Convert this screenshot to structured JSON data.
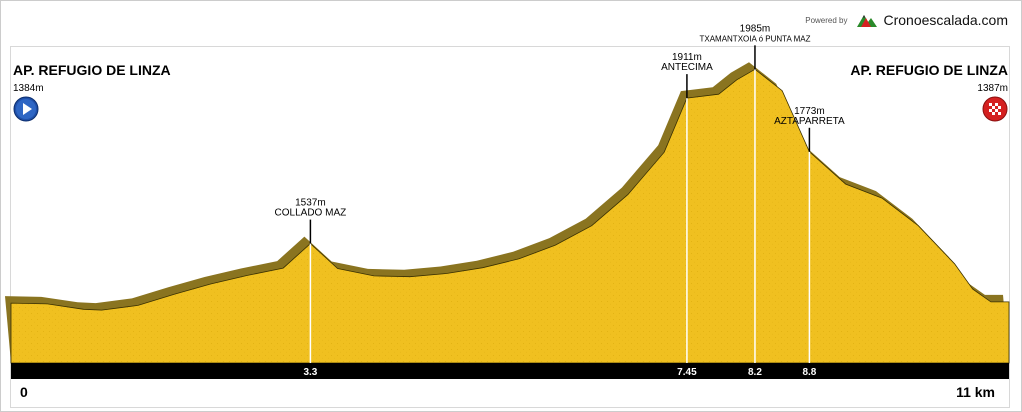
{
  "branding": {
    "powered_by": "Powered by",
    "name": "Cronoescalada.com",
    "logo_icon": "mountain-logo-icon",
    "logo_colors": [
      "#d62020",
      "#2a8a2a",
      "#333333"
    ]
  },
  "start": {
    "name": "AP. REFUGIO DE LINZA",
    "elevation": "1384m",
    "icon": "play-start-icon",
    "color": "#1f4fa8"
  },
  "finish": {
    "name": "AP. REFUGIO DE LINZA",
    "elevation": "1387m",
    "icon": "checkered-flag-icon",
    "color": "#d42020"
  },
  "axis": {
    "start_label": "0",
    "end_label": "11 km"
  },
  "colors": {
    "fill": "#f0c020",
    "shadow": "#8a7420",
    "axis_bar": "#000000",
    "frame": "#cccccc"
  },
  "chart_data": {
    "type": "area",
    "title": "",
    "xlabel": "",
    "ylabel": "",
    "xlim": [
      0,
      11
    ],
    "ylim": [
      1230,
      2045
    ],
    "grid": false,
    "legend": false,
    "x": [
      0,
      0.4,
      0.8,
      1.0,
      1.4,
      1.8,
      2.2,
      2.6,
      3.0,
      3.3,
      3.6,
      4.0,
      4.4,
      4.8,
      5.2,
      5.6,
      6.0,
      6.4,
      6.8,
      7.2,
      7.45,
      7.8,
      8.0,
      8.2,
      8.5,
      8.8,
      9.2,
      9.6,
      10.0,
      10.4,
      10.6,
      10.8,
      11.0
    ],
    "elevation_m": [
      1384,
      1382,
      1368,
      1366,
      1378,
      1407,
      1433,
      1455,
      1474,
      1537,
      1473,
      1454,
      1452,
      1460,
      1475,
      1498,
      1533,
      1583,
      1663,
      1772,
      1911,
      1921,
      1958,
      1985,
      1930,
      1773,
      1690,
      1654,
      1583,
      1485,
      1420,
      1387,
      1387
    ],
    "annotations": [
      {
        "km": 3.3,
        "km_label": "3.3",
        "elevation": "1537m",
        "name": "COLLADO MAZ",
        "elev_value": 1537
      },
      {
        "km": 7.45,
        "km_label": "7.45",
        "elevation": "1911m",
        "name": "ANTECIMA",
        "elev_value": 1911
      },
      {
        "km": 8.2,
        "km_label": "8.2",
        "elevation": "1985m",
        "name": "TXAMANTXOIA ó PUNTA MAZ",
        "elev_value": 1985
      },
      {
        "km": 8.8,
        "km_label": "8.8",
        "elevation": "1773m",
        "name": "AZTAPARRETA",
        "elev_value": 1773
      }
    ]
  }
}
